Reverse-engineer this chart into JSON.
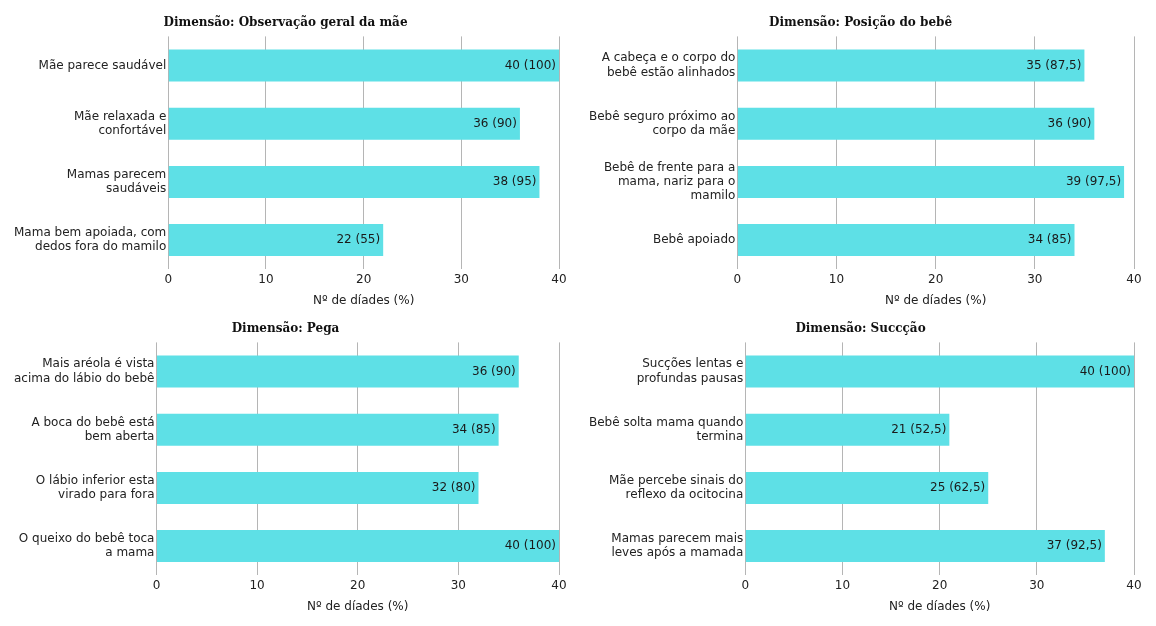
{
  "chart_data": [
    {
      "type": "bar",
      "orientation": "horizontal",
      "title": "Dimensão: Observação geral da mãe",
      "xlabel": "Nº de díades (%)",
      "categories": [
        "Mãe parece saudável",
        "Mãe relaxada e confortável",
        "Mamas parecem saudáveis",
        "Mama bem apoiada, com dedos fora do mamilo"
      ],
      "values": [
        40,
        36,
        38,
        22
      ],
      "value_labels": [
        "40 (100)",
        "36 (90)",
        "38 (95)",
        "22 (55)"
      ],
      "color": "#5ee0e6",
      "xlim": [
        0,
        40
      ],
      "xticks": [
        0,
        10,
        20,
        30,
        40
      ],
      "grid": "x",
      "legend": false
    },
    {
      "type": "bar",
      "orientation": "horizontal",
      "title": "Dimensão: Posição do bebê",
      "xlabel": "Nº de díades (%)",
      "categories": [
        "A cabeça e o corpo do bebê estão alinhados",
        "Bebê seguro próximo ao corpo da mãe",
        "Bebê de frente para a mama, nariz para o mamilo",
        "Bebê apoiado"
      ],
      "values": [
        35,
        36,
        39,
        34
      ],
      "value_labels": [
        "35 (87,5)",
        "36 (90)",
        "39 (97,5)",
        "34 (85)"
      ],
      "color": "#5ee0e6",
      "xlim": [
        0,
        40
      ],
      "xticks": [
        0,
        10,
        20,
        30,
        40
      ],
      "grid": "x",
      "legend": false
    },
    {
      "type": "bar",
      "orientation": "horizontal",
      "title": "Dimensão: Pega",
      "xlabel": "Nº de díades (%)",
      "categories": [
        "Mais aréola é vista acima do lábio do bebê",
        "A boca do bebê está bem aberta",
        "O lábio inferior esta virado para fora",
        "O queixo do bebê toca a mama"
      ],
      "values": [
        36,
        34,
        32,
        40
      ],
      "value_labels": [
        "36 (90)",
        "34 (85)",
        "32 (80)",
        "40 (100)"
      ],
      "color": "#5ee0e6",
      "xlim": [
        0,
        40
      ],
      "xticks": [
        0,
        10,
        20,
        30,
        40
      ],
      "grid": "x",
      "legend": false
    },
    {
      "type": "bar",
      "orientation": "horizontal",
      "title": "Dimensão: Succção",
      "xlabel": "Nº de díades (%)",
      "categories": [
        "Sucções lentas e profundas pausas",
        "Bebê solta mama quando termina",
        "Mãe percebe sinais do reflexo da ocitocina",
        "Mamas parecem mais leves após a mamada"
      ],
      "values": [
        40,
        21,
        25,
        37
      ],
      "value_labels": [
        "40 (100)",
        "21 (52,5)",
        "25 (62,5)",
        "37 (92,5)"
      ],
      "color": "#5ee0e6",
      "xlim": [
        0,
        40
      ],
      "xticks": [
        0,
        10,
        20,
        30,
        40
      ],
      "grid": "x",
      "legend": false
    }
  ]
}
